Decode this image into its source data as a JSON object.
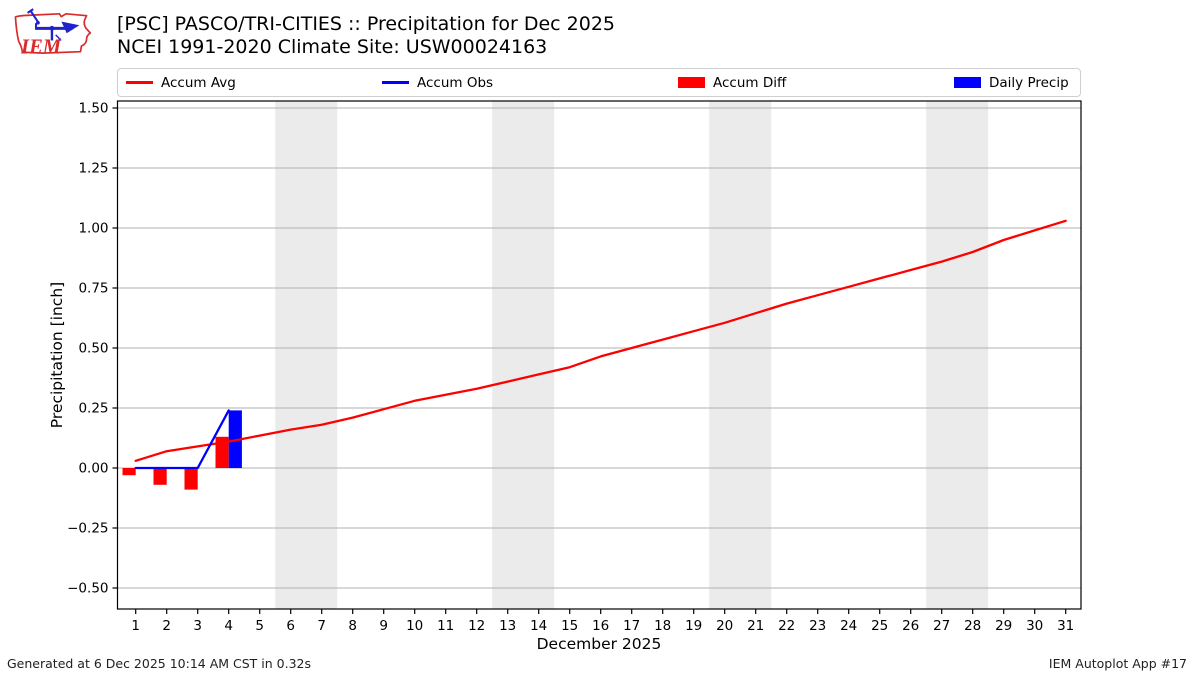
{
  "header": {
    "logo_text": "IEM",
    "title_line1": "[PSC] PASCO/TRI-CITIES :: Precipitation for Dec 2025",
    "title_line2": "NCEI 1991-2020 Climate Site: USW00024163"
  },
  "legend": {
    "items": [
      {
        "label": "Accum Avg",
        "swatch": "line",
        "color": "#ff0000"
      },
      {
        "label": "Accum Obs",
        "swatch": "line",
        "color": "#0000ff"
      },
      {
        "label": "Accum Diff",
        "swatch": "rect",
        "color": "#ff0000"
      },
      {
        "label": "Daily Precip",
        "swatch": "rect",
        "color": "#0000ff"
      }
    ]
  },
  "footer": {
    "generated": "Generated at 6 Dec 2025 10:14 AM CST in 0.32s",
    "app": "IEM Autoplot App #17"
  },
  "colors": {
    "accum_avg": "#ff0000",
    "accum_obs": "#0000ff",
    "accum_diff": "#ff0000",
    "daily_precip": "#0000ff",
    "weekend_band": "#ebebeb",
    "gridline": "#b2b2b2",
    "spine": "#000000",
    "logo_red": "#d92b2b",
    "logo_blue": "#2222cc"
  },
  "chart_data": {
    "type": "line+bar",
    "title": "[PSC] PASCO/TRI-CITIES :: Precipitation for Dec 2025",
    "subtitle": "NCEI 1991-2020 Climate Site: USW00024163",
    "xlabel": "December 2025",
    "ylabel": "Precipitation [inch]",
    "xlim": [
      0.42,
      31.5
    ],
    "ylim": [
      -0.59,
      1.53
    ],
    "grid": true,
    "legend_position": "top",
    "weekend_bands": [
      [
        5.5,
        7.5
      ],
      [
        12.5,
        14.5
      ],
      [
        19.5,
        21.5
      ],
      [
        26.5,
        28.5
      ]
    ],
    "x_ticks": {
      "values": [
        1,
        2,
        3,
        4,
        5,
        6,
        7,
        8,
        9,
        10,
        11,
        12,
        13,
        14,
        15,
        16,
        17,
        18,
        19,
        20,
        21,
        22,
        23,
        24,
        25,
        26,
        27,
        28,
        29,
        30,
        31
      ],
      "labels": [
        "1",
        "2",
        "3",
        "4",
        "5",
        "6",
        "7",
        "8",
        "9",
        "10",
        "11",
        "12",
        "13",
        "14",
        "15",
        "16",
        "17",
        "18",
        "19",
        "20",
        "21",
        "22",
        "23",
        "24",
        "25",
        "26",
        "27",
        "28",
        "29",
        "30",
        "31"
      ]
    },
    "y_ticks": {
      "values": [
        -0.5,
        -0.25,
        0.0,
        0.25,
        0.5,
        0.75,
        1.0,
        1.25,
        1.5
      ],
      "labels": [
        "−0.50",
        "−0.25",
        "0.00",
        "0.25",
        "0.50",
        "0.75",
        "1.00",
        "1.25",
        "1.50"
      ]
    },
    "series": [
      {
        "name": "Accum Avg",
        "type": "line",
        "color": "#ff0000",
        "x": [
          1,
          2,
          3,
          4,
          5,
          6,
          7,
          8,
          9,
          10,
          11,
          12,
          13,
          14,
          15,
          16,
          17,
          18,
          19,
          20,
          21,
          22,
          23,
          24,
          25,
          26,
          27,
          28,
          29,
          30,
          31
        ],
        "values": [
          0.03,
          0.07,
          0.09,
          0.11,
          0.135,
          0.16,
          0.18,
          0.21,
          0.245,
          0.28,
          0.305,
          0.33,
          0.36,
          0.39,
          0.42,
          0.465,
          0.5,
          0.535,
          0.57,
          0.605,
          0.645,
          0.685,
          0.72,
          0.755,
          0.79,
          0.825,
          0.86,
          0.9,
          0.95,
          0.99,
          1.03
        ]
      },
      {
        "name": "Accum Obs",
        "type": "line",
        "color": "#0000ff",
        "x": [
          1,
          2,
          3,
          4
        ],
        "values": [
          0.0,
          0.0,
          0.0,
          0.24
        ]
      },
      {
        "name": "Accum Diff",
        "type": "bar",
        "color": "#ff0000",
        "bar_side": "left",
        "x": [
          1,
          2,
          3,
          4
        ],
        "values": [
          -0.03,
          -0.07,
          -0.09,
          0.13
        ]
      },
      {
        "name": "Daily Precip",
        "type": "bar",
        "color": "#0000ff",
        "bar_side": "right",
        "x": [
          4
        ],
        "values": [
          0.24
        ]
      }
    ]
  }
}
